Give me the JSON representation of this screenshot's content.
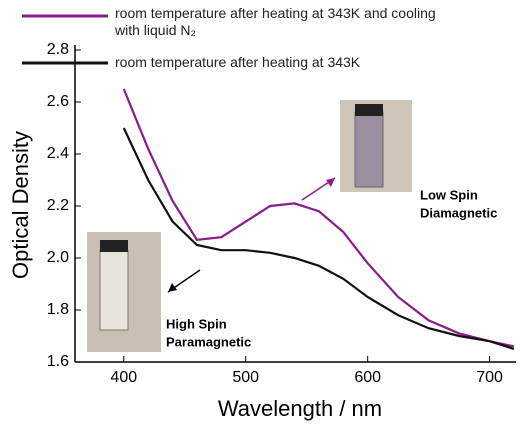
{
  "chart_data": {
    "type": "line",
    "xlabel": "Wavelength / nm",
    "ylabel": "Optical Density",
    "x": [
      400,
      420,
      440,
      460,
      480,
      500,
      520,
      540,
      560,
      580,
      600,
      625,
      650,
      675,
      700,
      720
    ],
    "series": [
      {
        "name": "room temperature after heating at 343K and cooling with liquid N₂",
        "color": "#8b1a8b",
        "values": [
          2.65,
          2.42,
          2.22,
          2.07,
          2.08,
          2.14,
          2.2,
          2.21,
          2.18,
          2.1,
          1.98,
          1.85,
          1.76,
          1.71,
          1.68,
          1.66
        ]
      },
      {
        "name": "room temperature after heating at 343K",
        "color": "#111111",
        "values": [
          2.5,
          2.3,
          2.14,
          2.05,
          2.03,
          2.03,
          2.02,
          2.0,
          1.97,
          1.92,
          1.85,
          1.78,
          1.73,
          1.7,
          1.68,
          1.65
        ]
      }
    ],
    "xlim": [
      360,
      720
    ],
    "xticks": [
      400,
      500,
      600,
      700
    ],
    "ylim": [
      1.6,
      2.8
    ],
    "yticks": [
      {
        "value": 1.6,
        "label": "1.6"
      },
      {
        "value": 1.8,
        "label": "1.8"
      },
      {
        "value": 2.0,
        "label": "2.0"
      },
      {
        "value": 2.2,
        "label": "2.2"
      },
      {
        "value": 2.4,
        "label": "2.4"
      },
      {
        "value": 2.6,
        "label": "2.6"
      },
      {
        "value": 2.8,
        "label": "2.8"
      }
    ],
    "annotations": [
      {
        "lines": [
          "Low Spin",
          "Diamagnetic"
        ]
      },
      {
        "lines": [
          "High Spin",
          "Paramagnetic"
        ]
      }
    ]
  }
}
